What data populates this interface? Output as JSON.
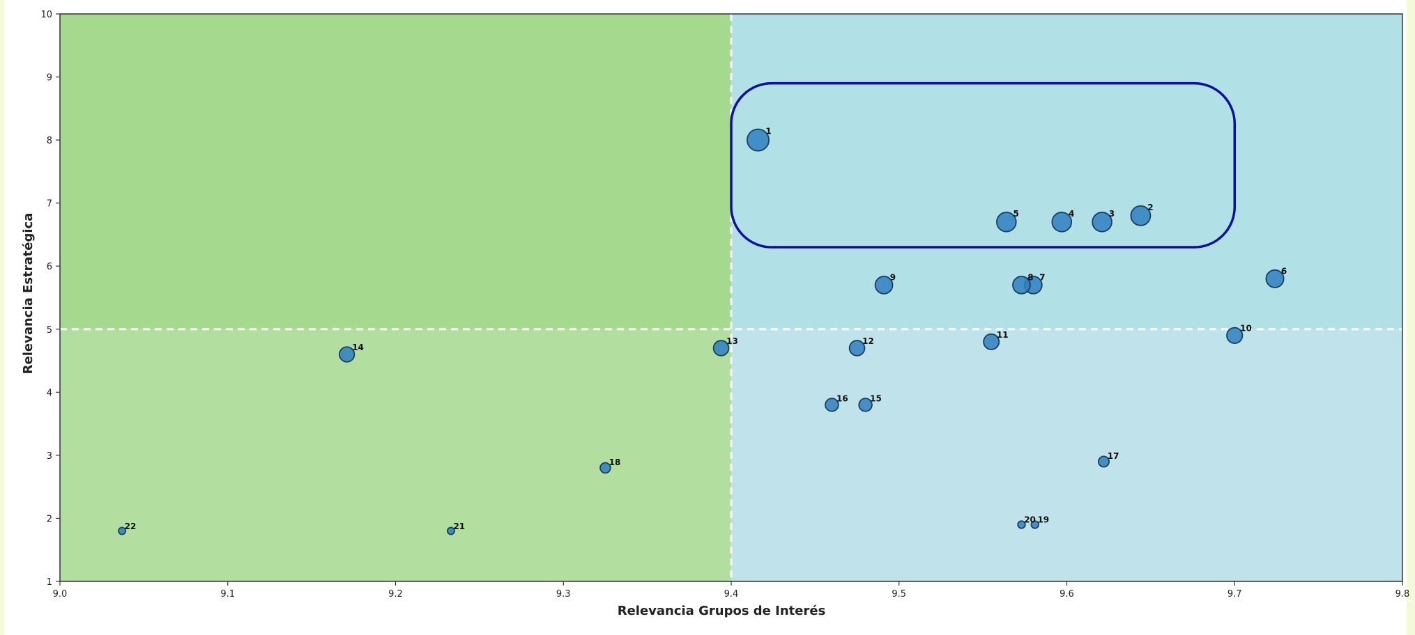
{
  "chart_data": {
    "type": "scatter",
    "xlabel": "Relevancia Grupos de Interés",
    "ylabel": "Relevancia Estratégica",
    "xlim": [
      9.0,
      9.8
    ],
    "ylim": [
      1,
      10
    ],
    "x_ticks": [
      "9.0",
      "9.1",
      "9.2",
      "9.3",
      "9.4",
      "9.5",
      "9.6",
      "9.7",
      "9.8"
    ],
    "y_ticks": [
      "1",
      "2",
      "3",
      "4",
      "5",
      "6",
      "7",
      "8",
      "9",
      "10"
    ],
    "x_threshold": 9.4,
    "y_threshold": 5,
    "quadrant_colors": {
      "top_left": "#a5d98e",
      "bottom_left": "#b2de9f",
      "top_right": "#b1e0e6",
      "bottom_right": "#c0e2ea"
    },
    "marker_color": "#2f7fbf",
    "highlight_box_color": "#1010a0",
    "highlight_box": {
      "x": [
        9.4,
        9.7
      ],
      "y": [
        6.3,
        8.9
      ]
    },
    "points": [
      {
        "label": "1",
        "x": 9.416,
        "y": 8.0,
        "size": 8.0
      },
      {
        "label": "2",
        "x": 9.644,
        "y": 6.8,
        "size": 6.8
      },
      {
        "label": "3",
        "x": 9.621,
        "y": 6.7,
        "size": 6.7
      },
      {
        "label": "4",
        "x": 9.597,
        "y": 6.7,
        "size": 6.7
      },
      {
        "label": "5",
        "x": 9.564,
        "y": 6.7,
        "size": 6.7
      },
      {
        "label": "6",
        "x": 9.724,
        "y": 5.8,
        "size": 5.8
      },
      {
        "label": "7",
        "x": 9.58,
        "y": 5.7,
        "size": 5.7
      },
      {
        "label": "8",
        "x": 9.573,
        "y": 5.7,
        "size": 5.7
      },
      {
        "label": "9",
        "x": 9.491,
        "y": 5.7,
        "size": 5.7
      },
      {
        "label": "10",
        "x": 9.7,
        "y": 4.9,
        "size": 4.9
      },
      {
        "label": "11",
        "x": 9.555,
        "y": 4.8,
        "size": 4.8
      },
      {
        "label": "12",
        "x": 9.475,
        "y": 4.7,
        "size": 4.7
      },
      {
        "label": "13",
        "x": 9.394,
        "y": 4.7,
        "size": 4.7
      },
      {
        "label": "14",
        "x": 9.171,
        "y": 4.6,
        "size": 4.6
      },
      {
        "label": "15",
        "x": 9.48,
        "y": 3.8,
        "size": 3.8
      },
      {
        "label": "16",
        "x": 9.46,
        "y": 3.8,
        "size": 3.8
      },
      {
        "label": "17",
        "x": 9.622,
        "y": 2.9,
        "size": 2.9
      },
      {
        "label": "18",
        "x": 9.325,
        "y": 2.8,
        "size": 2.8
      },
      {
        "label": "19",
        "x": 9.581,
        "y": 1.9,
        "size": 1.9
      },
      {
        "label": "20",
        "x": 9.573,
        "y": 1.9,
        "size": 1.9
      },
      {
        "label": "21",
        "x": 9.233,
        "y": 1.8,
        "size": 1.8
      },
      {
        "label": "22",
        "x": 9.037,
        "y": 1.8,
        "size": 1.8
      }
    ]
  }
}
